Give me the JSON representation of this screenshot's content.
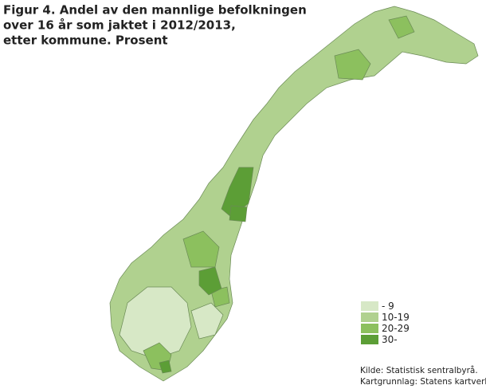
{
  "title_lines": [
    "Figur 4. Andel av den mannlige befolkningen",
    "over 16 år som jaktet i 2012/2013,",
    "etter kommune. Prosent"
  ],
  "legend": [
    {
      "label": "-  9",
      "color": "#d7e8c6"
    },
    {
      "label": "10-19",
      "color": "#b0d18f"
    },
    {
      "label": "20-29",
      "color": "#8cc05e"
    },
    {
      "label": "30-",
      "color": "#5c9e36"
    }
  ],
  "source_lines": [
    "Kilde: Statistisk sentralbyrå.",
    "Kartgrunnlag: Statens kartverk."
  ]
}
